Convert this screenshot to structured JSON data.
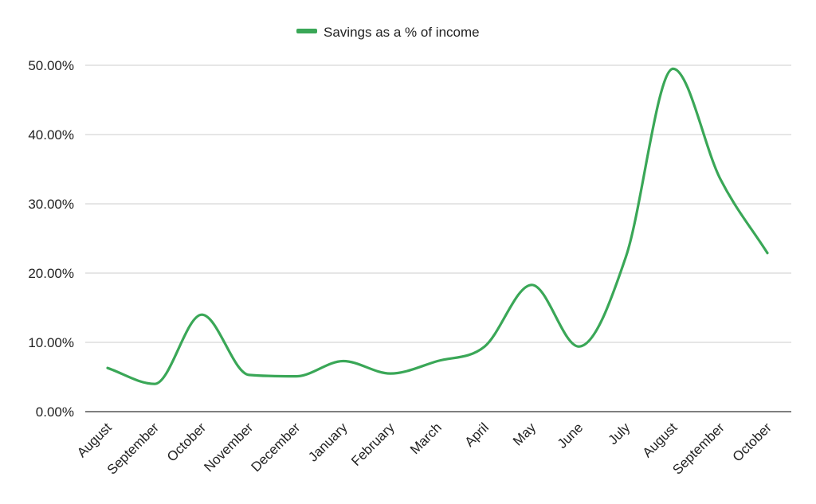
{
  "chart_data": {
    "type": "line",
    "title": "",
    "xlabel": "",
    "ylabel": "",
    "categories": [
      "August",
      "September",
      "October",
      "November",
      "December",
      "January",
      "February",
      "March",
      "April",
      "May",
      "June",
      "July",
      "August",
      "September",
      "October"
    ],
    "series": [
      {
        "name": "Savings as a % of income",
        "color": "#3aa757",
        "values": [
          6.3,
          4.0,
          14.0,
          5.3,
          5.1,
          7.3,
          5.5,
          7.3,
          9.4,
          18.3,
          9.4,
          22.4,
          49.5,
          33.6,
          22.9
        ]
      }
    ],
    "ylim": [
      0,
      50
    ],
    "yticks": [
      0,
      10,
      20,
      30,
      40,
      50
    ],
    "ytick_labels": [
      "0.00%",
      "10.00%",
      "20.00%",
      "30.00%",
      "40.00%",
      "50.00%"
    ],
    "line_style": "smooth",
    "grid": true,
    "legend_position": "top"
  }
}
